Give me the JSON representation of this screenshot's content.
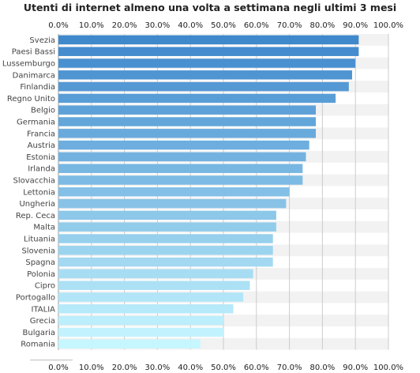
{
  "chart_data": {
    "type": "bar",
    "orientation": "horizontal",
    "title": "Utenti di internet almeno una volta a settimana negli ultimi 3 mesi",
    "xlabel": "",
    "ylabel": "",
    "xlim": [
      0,
      100
    ],
    "ticks": [
      "0.0%",
      "10.0%",
      "20.0%",
      "30.0%",
      "40.0%",
      "50.0%",
      "60.0%",
      "70.0%",
      "80.0%",
      "90.0%",
      "100.0%"
    ],
    "tick_values": [
      0,
      10,
      20,
      30,
      40,
      50,
      60,
      70,
      80,
      90,
      100
    ],
    "axis_position": "top and bottom",
    "grid": true,
    "categories": [
      "Svezia",
      "Paesi Bassi",
      "Lussemburgo",
      "Danimarca",
      "Finlandia",
      "Regno Unito",
      "Belgio",
      "Germania",
      "Francia",
      "Austria",
      "Estonia",
      "Irlanda",
      "Slovacchia",
      "Lettonia",
      "Ungheria",
      "Rep. Ceca",
      "Malta",
      "Lituania",
      "Slovenia",
      "Spagna",
      "Polonia",
      "Cipro",
      "Portogallo",
      "ITALIA",
      "Grecia",
      "Bulgaria",
      "Romania"
    ],
    "values": [
      91,
      91,
      90,
      89,
      88,
      84,
      78,
      78,
      78,
      76,
      75,
      74,
      74,
      70,
      69,
      66,
      66,
      65,
      65,
      65,
      59,
      58,
      56,
      53,
      50,
      50,
      43
    ],
    "colors": {
      "gradient_top": "#3f88cc",
      "gradient_bottom": "#c6f6ff",
      "grid": "#cccccc",
      "row_band": "#f2f2f2"
    }
  }
}
